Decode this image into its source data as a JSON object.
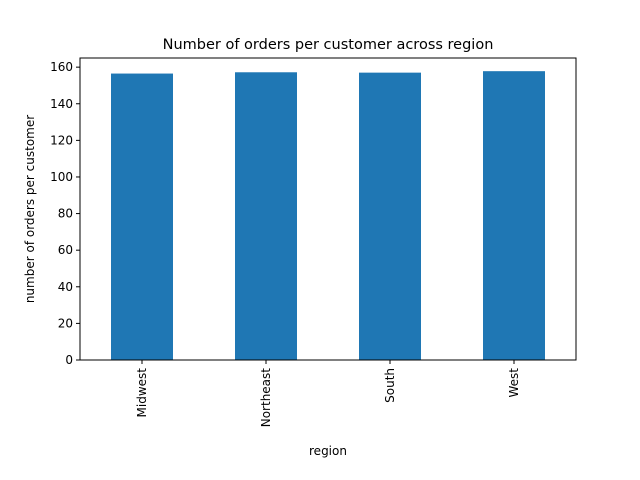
{
  "chart_data": {
    "type": "bar",
    "title": "Number of orders per customer across region",
    "xlabel": "region",
    "ylabel": "number of orders per customer",
    "categories": [
      "Midwest",
      "Northeast",
      "South",
      "West"
    ],
    "values": [
      156.5,
      157.2,
      157.0,
      157.8
    ],
    "ylim": [
      0,
      165
    ],
    "yticks": [
      0,
      20,
      40,
      60,
      80,
      100,
      120,
      140,
      160
    ],
    "bar_color": "#1f77b4",
    "grid": false,
    "legend": false
  }
}
